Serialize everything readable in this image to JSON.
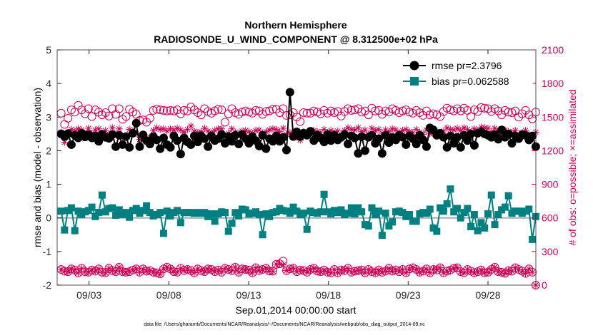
{
  "chart_data": {
    "type": "line",
    "title": "Northern Hemisphere",
    "subtitle": "RADIOSONDE_U_WIND_COMPONENT @ 8.312500e+02 hPa",
    "xlabel": "Sep.01,2014 00:00:00 start",
    "ylabel": "rmse and bias (model - observation)",
    "y2label": "# of obs: o=possible; ×=assimilated",
    "footnote": "data file: /Users/gharamti/Documents/NCAR/Reanalysis/~/Documents/NCAR/Reanalysis/webpub/obs_diag_output_2014-09.nc",
    "xlim": [
      1,
      31
    ],
    "ylim": [
      -2,
      5
    ],
    "y2lim": [
      0,
      2100
    ],
    "xticks": [
      3,
      8,
      13,
      18,
      23,
      28
    ],
    "xtick_labels": [
      "09/03",
      "09/08",
      "09/13",
      "09/18",
      "09/23",
      "09/28"
    ],
    "yticks": [
      "-2",
      "-1",
      "0",
      "1",
      "2",
      "3",
      "4",
      "5"
    ],
    "y2ticks": [
      "0",
      "300",
      "600",
      "900",
      "1200",
      "1500",
      "1800",
      "2100"
    ],
    "legend": [
      "rmse pr=2.3796",
      "bias pr=0.062588"
    ],
    "legend_position": "top-right",
    "colors": {
      "rmse": "#000000",
      "bias": "#008080",
      "obs": "#cc0055",
      "zero": "#aaaaaa"
    },
    "series": [
      {
        "name": "rmse",
        "axis": "left",
        "marker": "circle",
        "values": [
          2.5,
          2.42,
          2.51,
          2.18,
          2.46,
          2.38,
          2.52,
          2.41,
          2.48,
          2.38,
          2.44,
          2.28,
          2.49,
          2.4,
          2.37,
          2.48,
          2.12,
          2.46,
          2.18,
          2.42,
          2.1,
          2.52,
          2.82,
          2.12,
          2.47,
          2.3,
          2.2,
          2.42,
          2.32,
          2.06,
          2.38,
          2.18,
          2.1,
          2.44,
          2.3,
          1.9,
          2.38,
          2.26,
          2.18,
          2.44,
          2.26,
          2.44,
          2.36,
          2.12,
          2.44,
          2.3,
          2.36,
          2.48,
          2.22,
          2.42,
          2.28,
          2.46,
          2.2,
          2.48,
          2.36,
          2.22,
          2.42,
          2.3,
          2.14,
          2.46,
          2.06,
          2.36,
          2.28,
          2.44,
          2.28,
          2.4,
          2.02,
          3.74,
          2.42,
          2.56,
          2.42,
          2.52,
          2.46,
          2.58,
          2.3,
          2.46,
          2.38,
          2.26,
          2.48,
          2.3,
          2.46,
          2.32,
          2.4,
          2.48,
          2.2,
          2.44,
          2.38,
          1.92,
          2.42,
          2.0,
          2.4,
          2.46,
          2.22,
          2.36,
          1.92,
          2.46,
          2.24,
          2.4,
          2.32,
          2.46,
          2.4,
          2.18,
          2.44,
          2.36,
          2.2,
          2.46,
          2.32,
          2.12,
          2.68,
          2.62,
          2.46,
          2.52,
          2.4,
          2.1,
          2.44,
          2.22,
          2.4,
          2.1,
          2.46,
          2.3,
          2.5,
          2.16,
          2.52,
          2.56,
          2.5,
          2.46,
          2.4,
          2.48,
          2.34,
          2.62,
          2.4,
          2.5,
          2.22,
          2.44,
          2.36,
          2.48,
          2.46,
          2.32,
          2.44,
          2.12
        ]
      },
      {
        "name": "bias",
        "axis": "left",
        "marker": "square",
        "values": [
          0.2,
          -0.36,
          0.22,
          0.3,
          -0.38,
          0.2,
          0.1,
          0.18,
          0.22,
          0.32,
          0.04,
          0.16,
          0.68,
          0.18,
          0.28,
          0.3,
          0.08,
          0.24,
          0.1,
          0.16,
          0.02,
          0.22,
          0.28,
          0.14,
          0.22,
          0.36,
          0.16,
          0.06,
          0.1,
          0.16,
          -0.46,
          0.2,
          0.06,
          0.16,
          0.22,
          -0.14,
          0.16,
          0.16,
          0.16,
          0.14,
          0.16,
          0.14,
          0.16,
          0.04,
          0.12,
          -0.1,
          0.12,
          0.18,
          0.16,
          -0.4,
          -0.16,
          0.16,
          0.06,
          0.26,
          0.24,
          0.12,
          0.14,
          0.18,
          0.1,
          -0.5,
          0.12,
          0.04,
          0.16,
          0.18,
          0.28,
          0.22,
          0.2,
          0.14,
          0.32,
          0.2,
          0.1,
          0.14,
          -0.34,
          0.2,
          0.16,
          0.14,
          0.18,
          0.7,
          0.18,
          0.12,
          0.22,
          0.16,
          0.24,
          0.1,
          0.14,
          0.3,
          0.12,
          0.3,
          0.18,
          -0.2,
          -0.24,
          0.3,
          0.1,
          0.2,
          -0.52,
          0.14,
          -0.24,
          -0.12,
          0.18,
          0.2,
          0.16,
          0.04,
          0.1,
          -0.1,
          -0.1,
          0.12,
          0.16,
          0.14,
          0.26,
          -0.3,
          -0.4,
          0.3,
          0.2,
          0.42,
          0.86,
          0.18,
          0.28,
          0.0,
          0.16,
          0.28,
          -0.26,
          0.1,
          -0.38,
          -0.14,
          -0.3,
          0.12,
          0.68,
          -0.2,
          0.1,
          0.24,
          0.32,
          0.66,
          0.14,
          0.2,
          0.2,
          0.14,
          0.2,
          0.26,
          -0.64,
          0.04
        ]
      },
      {
        "name": "possible",
        "axis": "right",
        "marker": "open-circle",
        "values": [
          1535,
          1435,
          1490,
          1565,
          1545,
          1605,
          1565,
          1530,
          1575,
          1505,
          1565,
          1545,
          1520,
          1540,
          1510,
          1575,
          1525,
          1575,
          1480,
          1505,
          1570,
          1545,
          1525,
          1470,
          1475,
          1455,
          1490,
          1560,
          1570,
          1565,
          1560,
          1555,
          1560,
          1555,
          1565,
          1530,
          1560,
          1555,
          1590,
          1565,
          1540,
          1520,
          1575,
          1550,
          1535,
          1555,
          1570,
          1565,
          1455,
          1530,
          1575,
          1540,
          1525,
          1545,
          1555,
          1545,
          1535,
          1560,
          1555,
          1525,
          1550,
          1555,
          1570,
          1570,
          1540,
          1575,
          1515,
          1520,
          1540,
          1500,
          1460,
          1540,
          1535,
          1535,
          1555,
          1545,
          1530,
          1560,
          1535,
          1555,
          1540,
          1550,
          1510,
          1550,
          1575,
          1560,
          1565,
          1575,
          1545,
          1555,
          1520,
          1580,
          1555,
          1560,
          1525,
          1555,
          1545,
          1575,
          1560,
          1540,
          1555,
          1565,
          1545,
          1535,
          1560,
          1540,
          1515,
          1555,
          1520,
          1530,
          1520,
          1505,
          1550,
          1580,
          1565,
          1555,
          1575,
          1555,
          1580,
          1560,
          1505,
          1565,
          1550,
          1585,
          1580,
          1575,
          1550,
          1575,
          1555,
          1520,
          1560,
          1545,
          1540,
          1555,
          1500,
          1530,
          1560,
          1520,
          1485,
          1545
        ]
      },
      {
        "name": "assimilated",
        "axis": "right",
        "marker": "asterisk",
        "values": [
          1365,
          1275,
          1325,
          1390,
          1375,
          1395,
          1385,
          1350,
          1400,
          1355,
          1385,
          1395,
          1360,
          1380,
          1345,
          1405,
          1350,
          1395,
          1315,
          1330,
          1390,
          1375,
          1355,
          1300,
          1305,
          1295,
          1320,
          1380,
          1405,
          1390,
          1395,
          1375,
          1395,
          1385,
          1400,
          1385,
          1365,
          1390,
          1420,
          1375,
          1360,
          1370,
          1400,
          1375,
          1360,
          1380,
          1395,
          1395,
          1295,
          1355,
          1395,
          1365,
          1355,
          1375,
          1380,
          1370,
          1355,
          1380,
          1385,
          1350,
          1370,
          1385,
          1395,
          1390,
          1370,
          1400,
          1345,
          1360,
          1365,
          1330,
          1295,
          1370,
          1360,
          1365,
          1380,
          1370,
          1360,
          1390,
          1360,
          1380,
          1365,
          1375,
          1330,
          1380,
          1405,
          1390,
          1385,
          1405,
          1370,
          1385,
          1345,
          1400,
          1380,
          1390,
          1355,
          1385,
          1370,
          1395,
          1385,
          1360,
          1380,
          1390,
          1370,
          1360,
          1390,
          1365,
          1345,
          1385,
          1350,
          1360,
          1350,
          1335,
          1375,
          1405,
          1390,
          1385,
          1400,
          1380,
          1405,
          1390,
          1330,
          1395,
          1375,
          1410,
          1405,
          1400,
          1370,
          1400,
          1375,
          1345,
          1385,
          1370,
          1360,
          1380,
          1325,
          1360,
          1380,
          1345,
          1310,
          1365
        ]
      },
      {
        "name": "possible-low",
        "axis": "right",
        "marker": "open-circle",
        "values": [
          140,
          125,
          120,
          145,
          135,
          110,
          150,
          120,
          115,
          135,
          125,
          145,
          115,
          110,
          150,
          130,
          120,
          160,
          120,
          115,
          120,
          135,
          145,
          115,
          145,
          125,
          130,
          115,
          110,
          100,
          145,
          160,
          145,
          120,
          115,
          150,
          130,
          140,
          130,
          110,
          145,
          130,
          120,
          145,
          140,
          120,
          135,
          115,
          150,
          140,
          130,
          160,
          115,
          145,
          140,
          135,
          110,
          155,
          130,
          140,
          150,
          125,
          125,
          185,
          190,
          215,
          130,
          145,
          150,
          120,
          135,
          130,
          115,
          140,
          150,
          125,
          120,
          135,
          115,
          110,
          140,
          110,
          135,
          130,
          150,
          115,
          125,
          130,
          135,
          110,
          140,
          120,
          110,
          135,
          115,
          125,
          150,
          125,
          135,
          120,
          140,
          110,
          145,
          155,
          140,
          115,
          125,
          145,
          110,
          140,
          135,
          155,
          110,
          125,
          135,
          150,
          155,
          120,
          110,
          140,
          125,
          110,
          120,
          135,
          110,
          115,
          140,
          160,
          120,
          115,
          105,
          130,
          125,
          155,
          140,
          125,
          105,
          145,
          115,
          0
        ]
      },
      {
        "name": "assimilated-low",
        "axis": "right",
        "marker": "asterisk",
        "values": [
          140,
          125,
          120,
          145,
          135,
          110,
          150,
          120,
          115,
          135,
          125,
          145,
          115,
          110,
          150,
          130,
          120,
          160,
          120,
          115,
          120,
          135,
          145,
          115,
          145,
          125,
          130,
          115,
          110,
          100,
          145,
          160,
          145,
          120,
          115,
          150,
          130,
          140,
          130,
          110,
          145,
          130,
          120,
          145,
          140,
          120,
          135,
          115,
          150,
          140,
          130,
          160,
          115,
          145,
          140,
          135,
          110,
          155,
          130,
          140,
          150,
          125,
          125,
          185,
          190,
          180,
          130,
          145,
          150,
          120,
          135,
          130,
          115,
          140,
          150,
          125,
          120,
          135,
          115,
          110,
          140,
          110,
          135,
          130,
          150,
          115,
          125,
          130,
          135,
          110,
          140,
          120,
          110,
          135,
          115,
          125,
          150,
          125,
          135,
          120,
          140,
          110,
          145,
          155,
          140,
          115,
          125,
          145,
          110,
          140,
          135,
          155,
          110,
          125,
          135,
          150,
          155,
          120,
          110,
          140,
          125,
          110,
          120,
          135,
          110,
          115,
          140,
          160,
          120,
          115,
          105,
          130,
          125,
          155,
          140,
          125,
          105,
          145,
          115,
          0
        ]
      }
    ]
  }
}
